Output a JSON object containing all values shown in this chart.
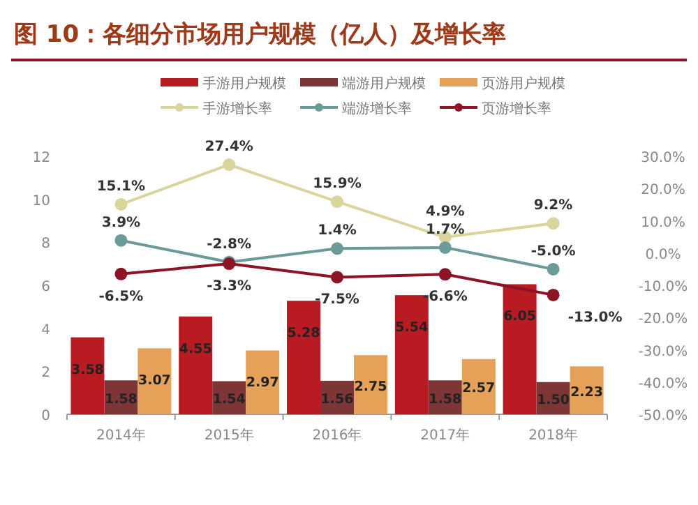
{
  "chart_data": {
    "type": "bar",
    "title": "图 10：各细分市场用户规模（亿人）及增长率",
    "categories": [
      "2014年",
      "2015年",
      "2016年",
      "2017年",
      "2018年"
    ],
    "series": [
      {
        "name": "手游用户规模",
        "color": "#b81c22",
        "values": [
          3.58,
          4.55,
          5.28,
          5.54,
          6.05
        ],
        "value_labels": [
          "3.58",
          "4.55",
          "5.28",
          "5.54",
          "6.05"
        ]
      },
      {
        "name": "端游用户规模",
        "color": "#7e3535",
        "values": [
          1.58,
          1.54,
          1.56,
          1.58,
          1.5
        ],
        "value_labels": [
          "1.58",
          "1.54",
          "1.56",
          "1.58",
          "1.50"
        ]
      },
      {
        "name": "页游用户规模",
        "color": "#e5a157",
        "values": [
          3.07,
          2.97,
          2.75,
          2.57,
          2.23
        ],
        "value_labels": [
          "3.07",
          "2.97",
          "2.75",
          "2.57",
          "2.23"
        ]
      },
      {
        "name": "手游增长率",
        "type": "line",
        "axis": "y2",
        "color": "#d9d59c",
        "values": [
          15.1,
          27.4,
          15.9,
          4.9,
          9.2
        ],
        "value_labels": [
          "15.1%",
          "27.4%",
          "15.9%",
          "4.9%",
          "9.2%"
        ]
      },
      {
        "name": "端游增长率",
        "type": "line",
        "axis": "y2",
        "color": "#6b9b97",
        "values": [
          3.9,
          -2.8,
          1.4,
          1.7,
          -5.0
        ],
        "value_labels": [
          "3.9%",
          "-2.8%",
          "1.4%",
          "1.7%",
          "-5.0%"
        ]
      },
      {
        "name": "页游增长率",
        "type": "line",
        "axis": "y2",
        "color": "#8c1424",
        "values": [
          -6.5,
          -3.3,
          -7.5,
          -6.6,
          -13.0
        ],
        "value_labels": [
          "-6.5%",
          "-3.3%",
          "-7.5%",
          "-6.6%",
          "-13.0%"
        ]
      }
    ],
    "ylim": [
      0,
      12
    ],
    "yticks": [
      0,
      2,
      4,
      6,
      8,
      10,
      12
    ],
    "y2lim": [
      -50,
      30
    ],
    "y2ticks": [
      {
        "value": -50,
        "label": "-50.0%"
      },
      {
        "value": -40,
        "label": "-40.0%"
      },
      {
        "value": -30,
        "label": "-30.0%"
      },
      {
        "value": -20,
        "label": "-20.0%"
      },
      {
        "value": -10,
        "label": "-10.0%"
      },
      {
        "value": 0,
        "label": "0.0%"
      },
      {
        "value": 10,
        "label": "10.0%"
      },
      {
        "value": 20,
        "label": "20.0%"
      },
      {
        "value": 30,
        "label": "30.0%"
      }
    ],
    "marker": "circle",
    "grid": false,
    "legend": "top"
  }
}
